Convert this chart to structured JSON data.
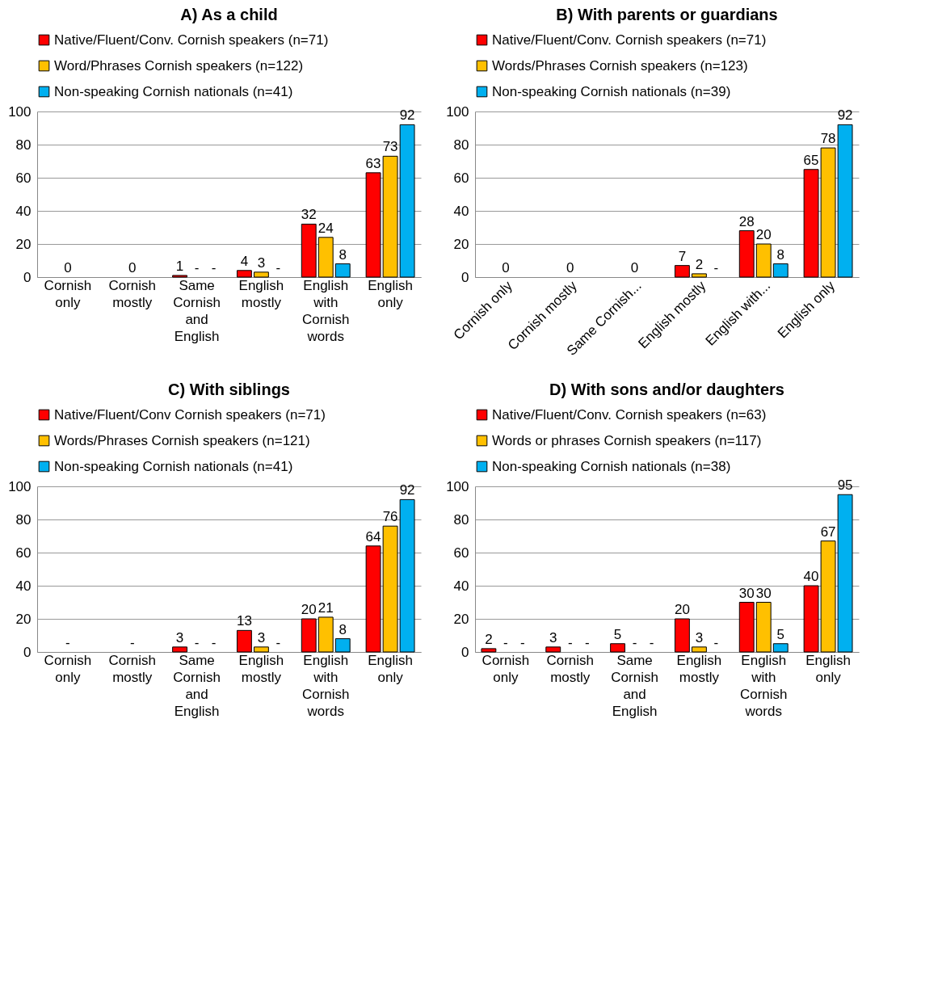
{
  "chart_data": [
    {
      "type": "bar",
      "title": "A) As a child",
      "categories": [
        "Cornish only",
        "Cornish mostly",
        "Same Cornish and English",
        "English mostly",
        "English with Cornish words",
        "English only"
      ],
      "series": [
        {
          "name": "Native/Fluent/Conv. Cornish speakers (n=71)",
          "color": "#ff0000",
          "values": [
            null,
            null,
            1,
            4,
            32,
            63
          ],
          "value_labels": [
            null,
            null,
            "1",
            "4",
            "32",
            "63"
          ]
        },
        {
          "name": "Word/Phrases Cornish speakers (n=122)",
          "color": "#ffc000",
          "values": [
            0,
            0,
            null,
            3,
            24,
            73
          ],
          "value_labels": [
            "0",
            "0",
            "-",
            "3",
            "24",
            "73"
          ]
        },
        {
          "name": "Non-speaking Cornish nationals (n=41)",
          "color": "#00b0f0",
          "values": [
            null,
            null,
            null,
            null,
            8,
            92
          ],
          "value_labels": [
            null,
            null,
            "-",
            "-",
            "8",
            "92"
          ]
        }
      ],
      "ylim": [
        0,
        100
      ],
      "yticks": [
        0,
        20,
        40,
        60,
        80,
        100
      ],
      "grid": "y",
      "legend": "top"
    },
    {
      "type": "bar",
      "title": "B) With parents or guardians",
      "categories": [
        "Cornish only",
        "Cornish mostly",
        "Same Cornish...",
        "English mostly",
        "English with...",
        "English only"
      ],
      "series": [
        {
          "name": "Native/Fluent/Conv. Cornish speakers (n=71)",
          "color": "#ff0000",
          "values": [
            null,
            null,
            null,
            7,
            28,
            65
          ],
          "value_labels": [
            null,
            null,
            null,
            "7",
            "28",
            "65"
          ]
        },
        {
          "name": "Words/Phrases Cornish speakers (n=123)",
          "color": "#ffc000",
          "values": [
            0,
            0,
            0,
            2,
            20,
            78
          ],
          "value_labels": [
            "0",
            "0",
            "0",
            "2",
            "20",
            "78"
          ]
        },
        {
          "name": "Non-speaking Cornish nationals (n=39)",
          "color": "#00b0f0",
          "values": [
            null,
            null,
            null,
            null,
            8,
            92
          ],
          "value_labels": [
            null,
            null,
            null,
            "-",
            "8",
            "92"
          ]
        }
      ],
      "ylim": [
        0,
        100
      ],
      "yticks": [
        0,
        20,
        40,
        60,
        80,
        100
      ],
      "grid": "y",
      "legend": "top"
    },
    {
      "type": "bar",
      "title": "C) With siblings",
      "categories": [
        "Cornish only",
        "Cornish mostly",
        "Same Cornish and English",
        "English mostly",
        "English with Cornish words",
        "English only"
      ],
      "series": [
        {
          "name": "Native/Fluent/Conv Cornish speakers (n=71)",
          "color": "#ff0000",
          "values": [
            null,
            null,
            3,
            13,
            20,
            64
          ],
          "value_labels": [
            null,
            null,
            "3",
            "13",
            "20",
            "64"
          ]
        },
        {
          "name": "Words/Phrases Cornish speakers (n=121)",
          "color": "#ffc000",
          "values": [
            null,
            null,
            null,
            3,
            21,
            76
          ],
          "value_labels": [
            "-",
            "-",
            "-",
            "3",
            "21",
            "76"
          ]
        },
        {
          "name": "Non-speaking Cornish nationals (n=41)",
          "color": "#00b0f0",
          "values": [
            null,
            null,
            null,
            null,
            8,
            92
          ],
          "value_labels": [
            null,
            null,
            "-",
            "-",
            "8",
            "92"
          ]
        }
      ],
      "ylim": [
        0,
        100
      ],
      "yticks": [
        0,
        20,
        40,
        60,
        80,
        100
      ],
      "grid": "y",
      "legend": "top"
    },
    {
      "type": "bar",
      "title": "D) With sons and/or daughters",
      "categories": [
        "Cornish only",
        "Cornish mostly",
        "Same Cornish and English",
        "English mostly",
        "English with Cornish words",
        "English only"
      ],
      "series": [
        {
          "name": "Native/Fluent/Conv. Cornish speakers (n=63)",
          "color": "#ff0000",
          "values": [
            2,
            3,
            5,
            20,
            30,
            40
          ],
          "value_labels": [
            "2",
            "3",
            "5",
            "20",
            "30",
            "40"
          ]
        },
        {
          "name": "Words or phrases Cornish speakers (n=117)",
          "color": "#ffc000",
          "values": [
            null,
            null,
            null,
            3,
            30,
            67
          ],
          "value_labels": [
            "-",
            "-",
            "-",
            "3",
            "30",
            "67"
          ]
        },
        {
          "name": "Non-speaking Cornish nationals (n=38)",
          "color": "#00b0f0",
          "values": [
            null,
            null,
            null,
            null,
            5,
            95
          ],
          "value_labels": [
            "-",
            "-",
            "-",
            "-",
            "5",
            "95"
          ]
        }
      ],
      "ylim": [
        0,
        100
      ],
      "yticks": [
        0,
        20,
        40,
        60,
        80,
        100
      ],
      "grid": "y",
      "legend": "top"
    }
  ]
}
